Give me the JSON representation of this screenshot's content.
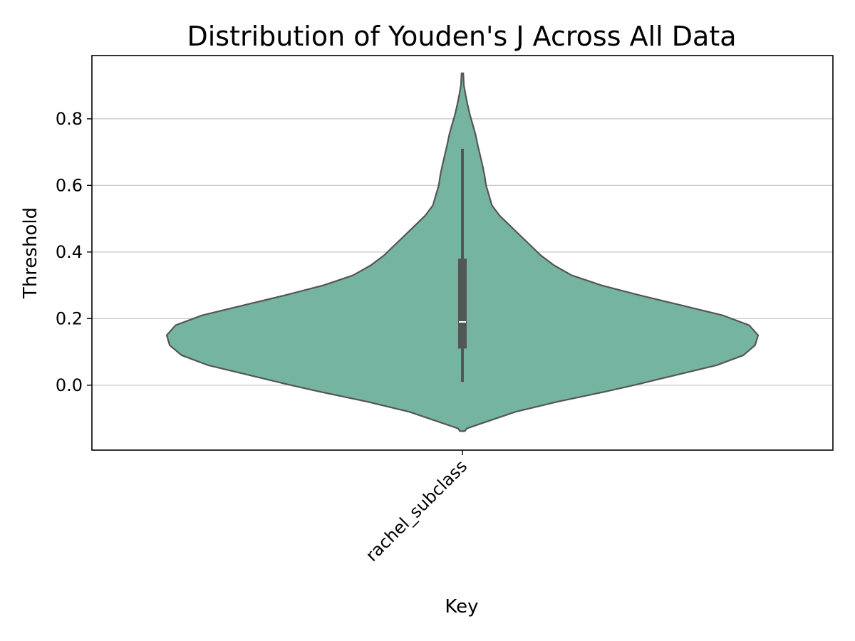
{
  "chart_data": {
    "type": "violin",
    "title": "Distribution of Youden's J Across All Data",
    "xlabel": "Key",
    "ylabel": "Threshold",
    "categories": [
      "rachel_subclass"
    ],
    "ylim": [
      -0.195,
      0.99
    ],
    "yticks": [
      0.0,
      0.2,
      0.4,
      0.6,
      0.8
    ],
    "ytick_labels": [
      "0.0",
      "0.2",
      "0.4",
      "0.6",
      "0.8"
    ],
    "grid": "horizontal",
    "colors": {
      "violin_fill": "#74b4a0",
      "violin_edge": "#555555",
      "box": "#555555",
      "median": "#ffffff",
      "grid": "#cccccc"
    },
    "violins": [
      {
        "category": "rachel_subclass",
        "min": 0.01,
        "q1": 0.11,
        "median": 0.19,
        "q3": 0.38,
        "max": 0.71,
        "density_ymin": -0.138,
        "density_ymax": 0.937,
        "density": [
          [
            -0.138,
            0.008
          ],
          [
            -0.13,
            0.015
          ],
          [
            -0.11,
            0.08
          ],
          [
            -0.08,
            0.18
          ],
          [
            -0.05,
            0.32
          ],
          [
            -0.02,
            0.48
          ],
          [
            0.0,
            0.58
          ],
          [
            0.03,
            0.72
          ],
          [
            0.06,
            0.86
          ],
          [
            0.09,
            0.95
          ],
          [
            0.12,
            0.99
          ],
          [
            0.15,
            1.0
          ],
          [
            0.18,
            0.97
          ],
          [
            0.21,
            0.88
          ],
          [
            0.24,
            0.74
          ],
          [
            0.27,
            0.6
          ],
          [
            0.3,
            0.47
          ],
          [
            0.33,
            0.37
          ],
          [
            0.36,
            0.31
          ],
          [
            0.39,
            0.265
          ],
          [
            0.42,
            0.23
          ],
          [
            0.45,
            0.195
          ],
          [
            0.48,
            0.16
          ],
          [
            0.51,
            0.125
          ],
          [
            0.54,
            0.1
          ],
          [
            0.57,
            0.09
          ],
          [
            0.6,
            0.08
          ],
          [
            0.63,
            0.075
          ],
          [
            0.66,
            0.068
          ],
          [
            0.69,
            0.06
          ],
          [
            0.72,
            0.052
          ],
          [
            0.75,
            0.045
          ],
          [
            0.78,
            0.036
          ],
          [
            0.81,
            0.026
          ],
          [
            0.84,
            0.018
          ],
          [
            0.87,
            0.011
          ],
          [
            0.9,
            0.005
          ],
          [
            0.937,
            0.003
          ]
        ]
      }
    ]
  }
}
